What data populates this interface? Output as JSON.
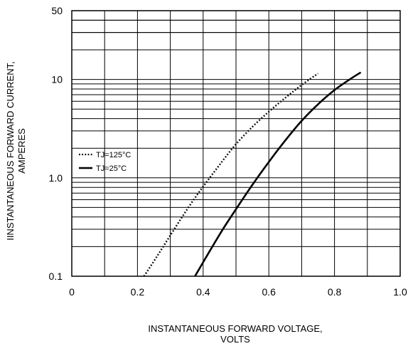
{
  "chart_data": {
    "type": "line",
    "xlabel": [
      "INSTANTANEOUS FORWARD VOLTAGE,",
      "VOLTS"
    ],
    "ylabel": [
      "IINSTANTANEOUS FORWARD CURRENT,",
      "AMPERES"
    ],
    "xlim": [
      0,
      1.0
    ],
    "ylim": [
      0.1,
      50
    ],
    "y_scale": "log",
    "grid": true,
    "legend_position": "left-middle",
    "x_ticks": [
      {
        "value": 0,
        "label": "0"
      },
      {
        "value": 0.2,
        "label": "0.2"
      },
      {
        "value": 0.4,
        "label": "0.4"
      },
      {
        "value": 0.6,
        "label": "0.6"
      },
      {
        "value": 0.8,
        "label": "0.8"
      },
      {
        "value": 1.0,
        "label": "1.0"
      }
    ],
    "y_ticks": [
      {
        "value": 0.1,
        "label": "0.1"
      },
      {
        "value": 1.0,
        "label": "1.0"
      },
      {
        "value": 10,
        "label": "10"
      },
      {
        "value": 50,
        "label": "50"
      }
    ],
    "series": [
      {
        "name": "TJ=125°C",
        "style": "dotted",
        "color": "#000000",
        "x": [
          0.22,
          0.26,
          0.3,
          0.34,
          0.38,
          0.42,
          0.46,
          0.5,
          0.55,
          0.6,
          0.65,
          0.7,
          0.75
        ],
        "y": [
          0.1,
          0.16,
          0.26,
          0.42,
          0.66,
          1.0,
          1.5,
          2.2,
          3.3,
          4.7,
          6.5,
          8.8,
          11.5
        ]
      },
      {
        "name": "TJ=25°C",
        "style": "solid",
        "color": "#000000",
        "x": [
          0.375,
          0.42,
          0.46,
          0.5,
          0.55,
          0.6,
          0.65,
          0.7,
          0.75,
          0.8,
          0.85,
          0.88
        ],
        "y": [
          0.1,
          0.18,
          0.3,
          0.48,
          0.85,
          1.45,
          2.4,
          3.8,
          5.6,
          7.8,
          10.2,
          11.8
        ]
      }
    ]
  }
}
